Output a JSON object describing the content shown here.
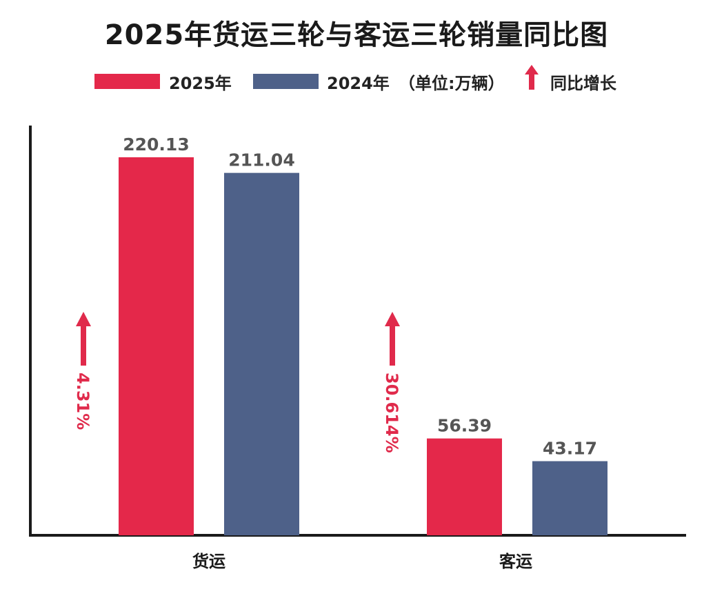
{
  "title": "2025年货运三轮与客运三轮销量同比图",
  "legend": {
    "series_2025": "2025年",
    "series_2024": "2024年",
    "unit": "（单位:万辆）",
    "growth": "同比增长"
  },
  "colors": {
    "series_2025": "#e4284a",
    "series_2024": "#4e6189",
    "growth": "#e02a4b",
    "axis": "#1a1a1a"
  },
  "chart_data": {
    "type": "bar",
    "title": "2025年货运三轮与客运三轮销量同比图",
    "categories": [
      "货运",
      "客运"
    ],
    "series": [
      {
        "name": "2025年",
        "values": [
          220.13,
          56.39
        ]
      },
      {
        "name": "2024年",
        "values": [
          211.04,
          43.17
        ]
      }
    ],
    "value_labels": [
      [
        "220.13",
        "56.39"
      ],
      [
        "211.04",
        "43.17"
      ]
    ],
    "growth_labels": [
      "4.31%",
      "30.614%"
    ],
    "unit": "万辆",
    "ylim": [
      0,
      230
    ],
    "legend_position": "top",
    "grid": false
  }
}
